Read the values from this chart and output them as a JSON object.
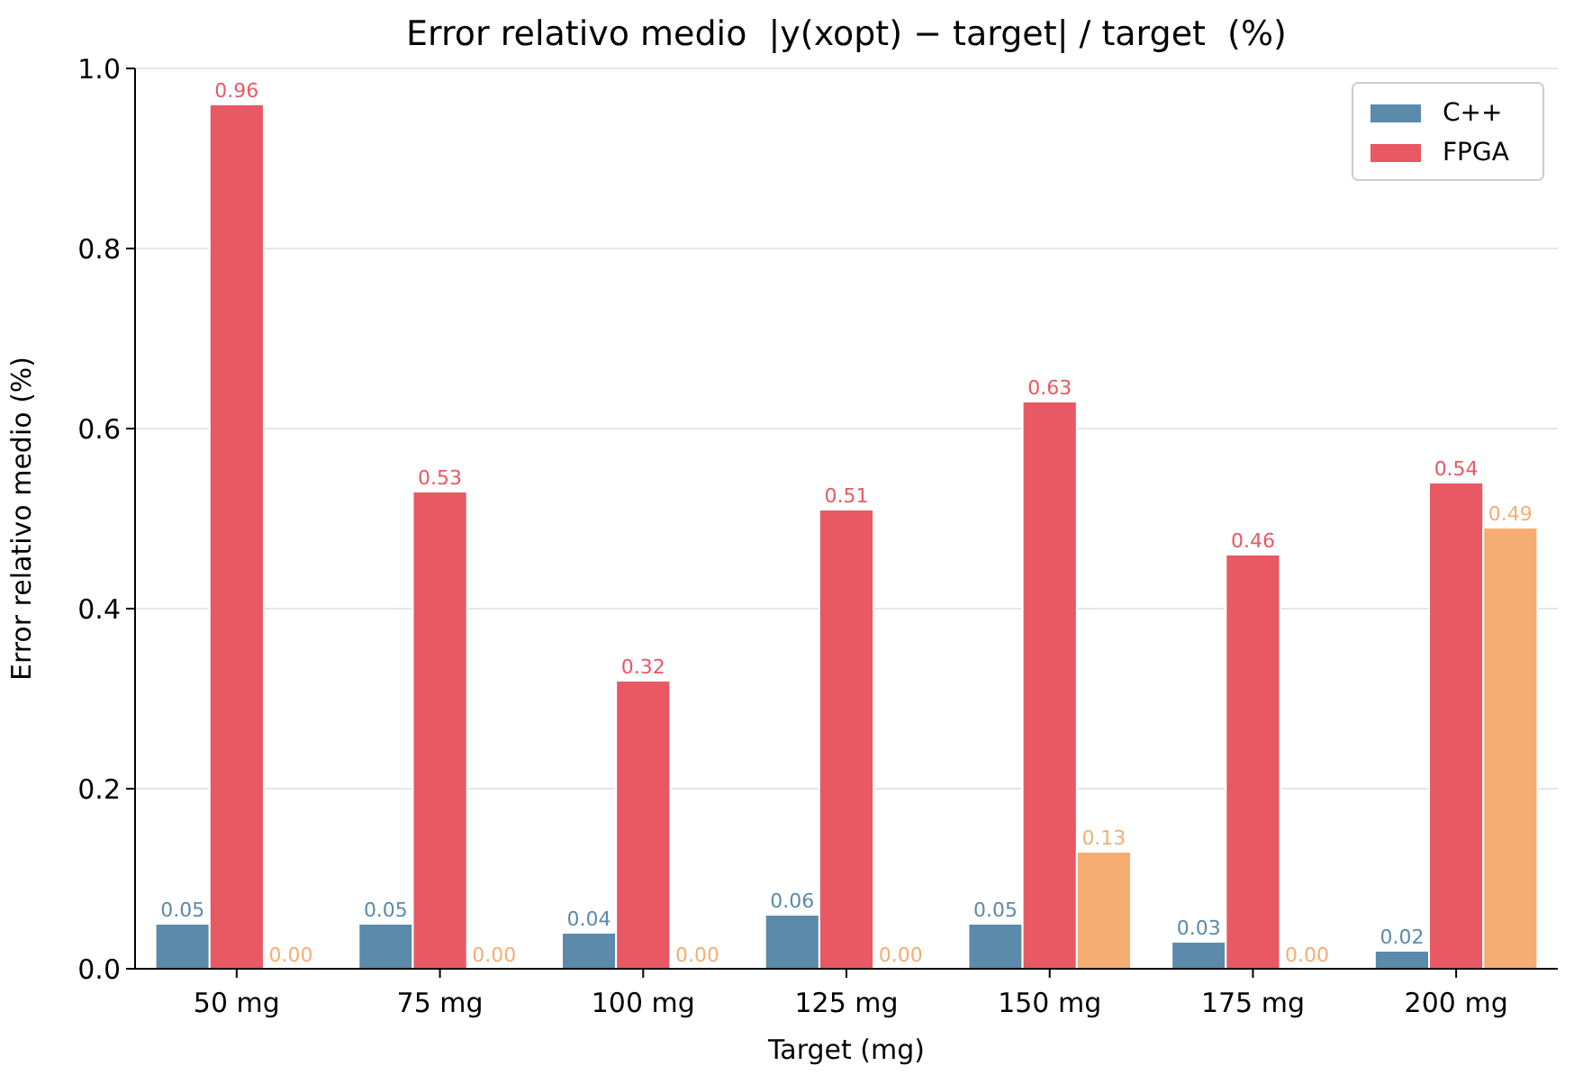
{
  "chart_data": {
    "type": "bar",
    "title": "Error relativo medio  |y(xopt) − target| / target  (%)",
    "xlabel": "Target (mg)",
    "ylabel": "Error relativo medio (%)",
    "categories": [
      "50 mg",
      "75 mg",
      "100 mg",
      "125 mg",
      "150 mg",
      "175 mg",
      "200 mg"
    ],
    "series": [
      {
        "name": "C++",
        "color": "#5b8aab",
        "values": [
          0.05,
          0.05,
          0.04,
          0.06,
          0.05,
          0.03,
          0.02
        ],
        "value_labels": [
          "0.05",
          "0.05",
          "0.04",
          "0.06",
          "0.05",
          "0.03",
          "0.02"
        ]
      },
      {
        "name": "FPGA",
        "color": "#e85963",
        "values": [
          0.96,
          0.53,
          0.32,
          0.51,
          0.63,
          0.46,
          0.54
        ],
        "value_labels": [
          "0.96",
          "0.53",
          "0.32",
          "0.51",
          "0.63",
          "0.46",
          "0.54"
        ]
      },
      {
        "color": "#f5ad73",
        "values": [
          0,
          0,
          0,
          0,
          0.13,
          0,
          0.49
        ],
        "value_labels": [
          "0.00",
          "0.00",
          "0.00",
          "0.00",
          "0.13",
          "0.00",
          "0.49"
        ]
      }
    ],
    "ylim": [
      0,
      1.0
    ],
    "yticks": [
      {
        "value": 0,
        "label": "0.0"
      },
      {
        "value": 0.2,
        "label": "0.2"
      },
      {
        "value": 0.4,
        "label": "0.4"
      },
      {
        "value": 0.6,
        "label": "0.6"
      },
      {
        "value": 0.8,
        "label": "0.8"
      },
      {
        "value": 1.0,
        "label": "1.0"
      }
    ],
    "grid": "y",
    "legend": "top right"
  }
}
